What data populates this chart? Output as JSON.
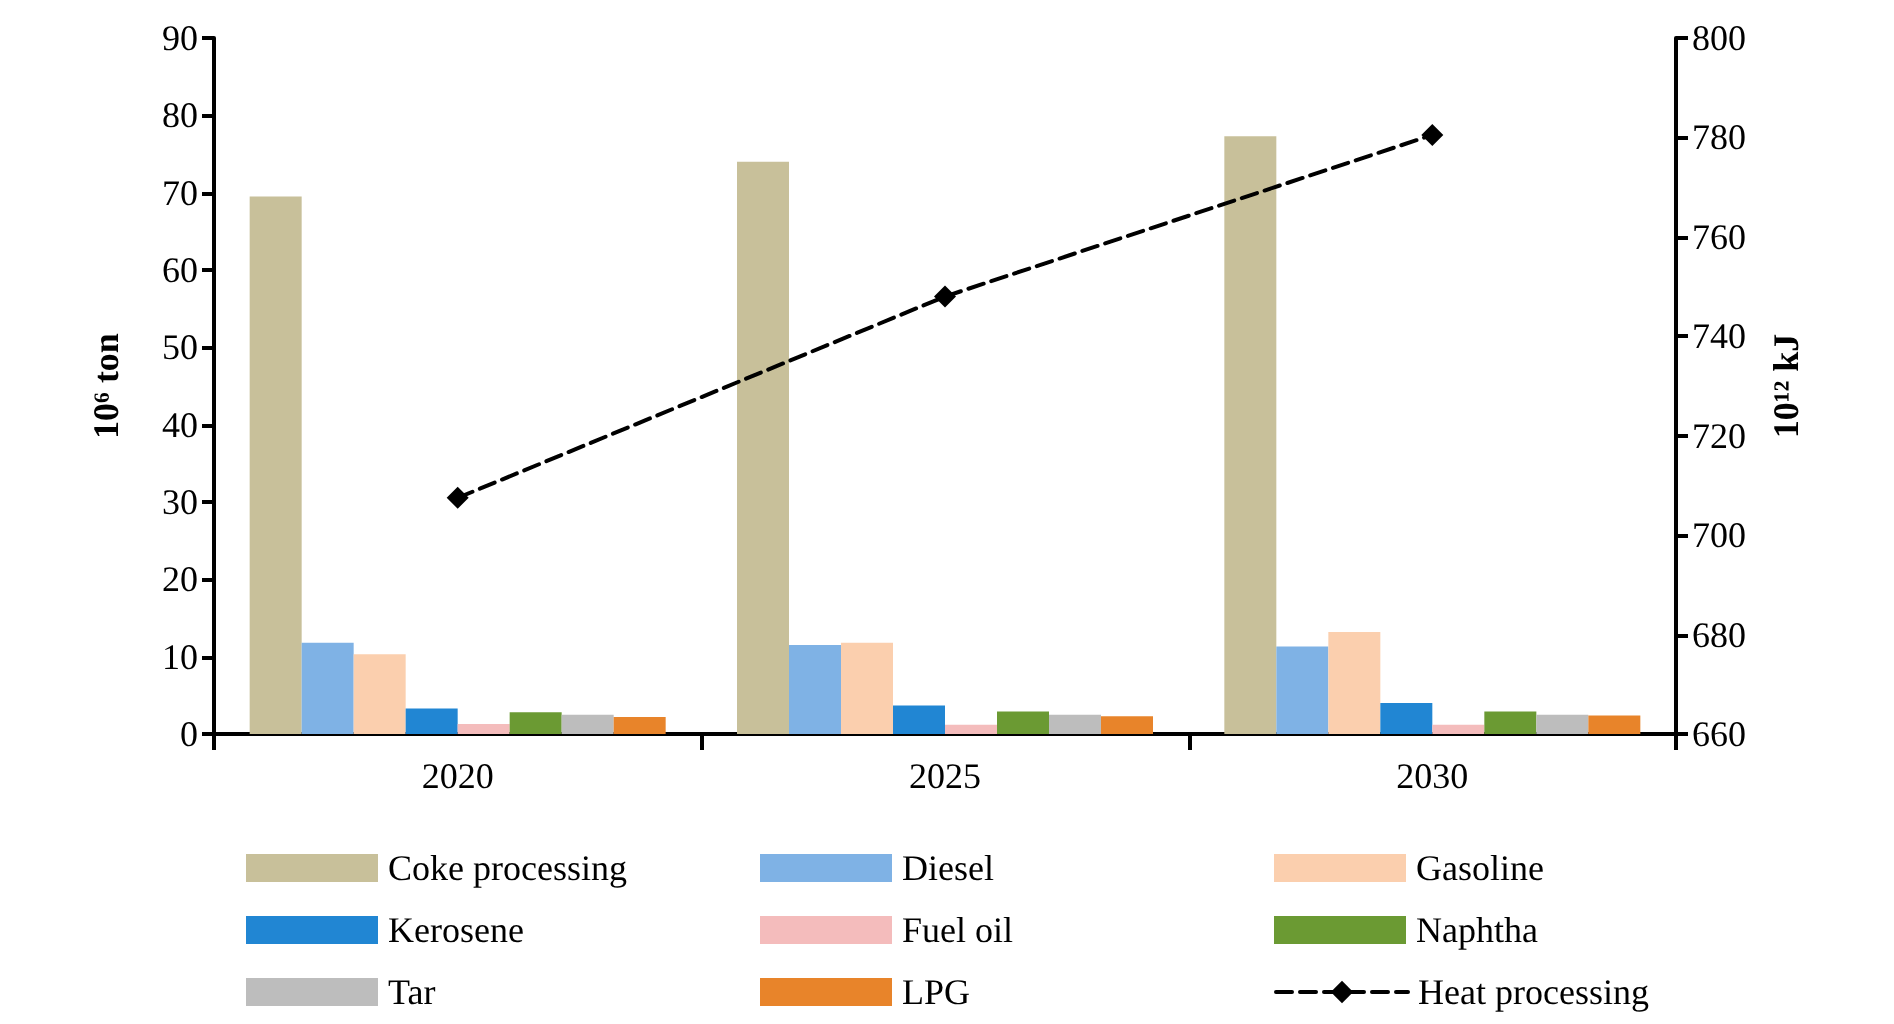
{
  "chart_data": {
    "type": "bar",
    "categories": [
      "2020",
      "2025",
      "2030"
    ],
    "ylabel": "10⁶ ton",
    "y2label": "10¹² kJ",
    "ylim": [
      0,
      90
    ],
    "yticks": [
      0,
      10,
      20,
      30,
      40,
      50,
      60,
      70,
      80,
      90
    ],
    "y2lim": [
      660,
      800
    ],
    "y2ticks": [
      660,
      680,
      700,
      720,
      740,
      760,
      780,
      800
    ],
    "grid": false,
    "legend": "bottom",
    "series": [
      {
        "name": "Coke processing",
        "color": "#c8c09a",
        "values": [
          69.5,
          74,
          77.3
        ]
      },
      {
        "name": "Diesel",
        "color": "#7fb2e5",
        "values": [
          11.8,
          11.5,
          11.3
        ]
      },
      {
        "name": "Gasoline",
        "color": "#fbcfae",
        "values": [
          10.3,
          11.8,
          13.2
        ]
      },
      {
        "name": "Kerosene",
        "color": "#2186d3",
        "values": [
          3.3,
          3.7,
          4.0
        ]
      },
      {
        "name": "Fuel oil",
        "color": "#f4bcbc",
        "values": [
          1.3,
          1.2,
          1.2
        ]
      },
      {
        "name": "Naphtha",
        "color": "#6b9a33",
        "values": [
          2.8,
          2.9,
          2.9
        ]
      },
      {
        "name": "Tar",
        "color": "#bdbdbd",
        "values": [
          2.5,
          2.5,
          2.5
        ]
      },
      {
        "name": "LPG",
        "color": "#e8842a",
        "values": [
          2.2,
          2.3,
          2.4
        ]
      },
      {
        "name": "Heat processing",
        "type": "line",
        "axis": "y2",
        "color": "#000000",
        "marker": "diamond",
        "line_style": "dashed",
        "values": [
          707.5,
          748,
          780.5
        ]
      }
    ]
  }
}
